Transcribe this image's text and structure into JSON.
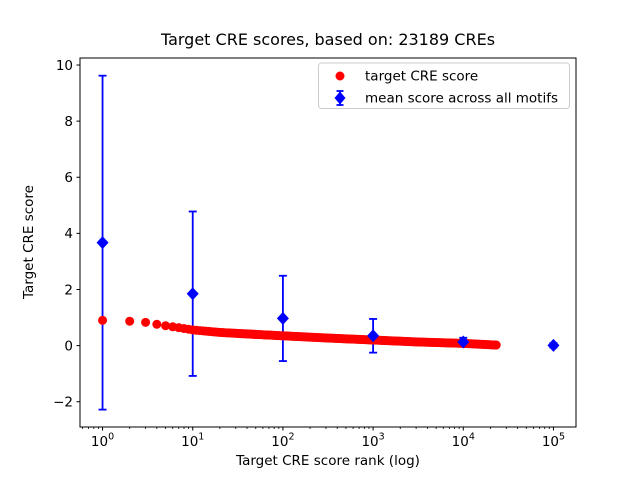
{
  "chart_data": {
    "type": "scatter",
    "title": "Target CRE scores, based on: 23189 CREs",
    "xlabel": "Target CRE score rank (log)",
    "ylabel": "Target CRE score",
    "x_scale": "log",
    "xlim_log10": [
      -0.25,
      5.25
    ],
    "ylim": [
      -2.9,
      10.25
    ],
    "x_major_tick_exponents": [
      0,
      1,
      2,
      3,
      4,
      5
    ],
    "y_ticks": [
      -2,
      0,
      2,
      4,
      6,
      8,
      10
    ],
    "grid": false,
    "legend_position": "upper right",
    "series": [
      {
        "name": "target CRE score",
        "type": "scatter",
        "marker": "circle",
        "color": "#ff0000",
        "n_points": 23189,
        "max_rank": 23189,
        "note": "dense decreasing curve of 23189 ranked scores; sampled as [log10(rank), score]",
        "samples_log10rank_value": [
          [
            0.0,
            0.9
          ],
          [
            0.301,
            0.87
          ],
          [
            0.477,
            0.83
          ],
          [
            0.602,
            0.76
          ],
          [
            0.699,
            0.71
          ],
          [
            0.845,
            0.64
          ],
          [
            1.0,
            0.56
          ],
          [
            1.301,
            0.47
          ],
          [
            1.699,
            0.4
          ],
          [
            2.0,
            0.35
          ],
          [
            2.5,
            0.27
          ],
          [
            3.0,
            0.2
          ],
          [
            3.5,
            0.13
          ],
          [
            4.0,
            0.08
          ],
          [
            4.365,
            0.02
          ]
        ]
      },
      {
        "name": "mean score across all motifs",
        "type": "errorbar",
        "marker": "diamond",
        "color": "#0000ff",
        "points": [
          {
            "x": 1,
            "mean": 3.67,
            "err": 5.95
          },
          {
            "x": 10,
            "mean": 1.85,
            "err": 2.93
          },
          {
            "x": 100,
            "mean": 0.97,
            "err": 1.52
          },
          {
            "x": 1000,
            "mean": 0.35,
            "err": 0.6
          },
          {
            "x": 10000,
            "mean": 0.13,
            "err": 0.15
          },
          {
            "x": 100000,
            "mean": 0.01,
            "err": 0.08
          }
        ]
      }
    ]
  }
}
